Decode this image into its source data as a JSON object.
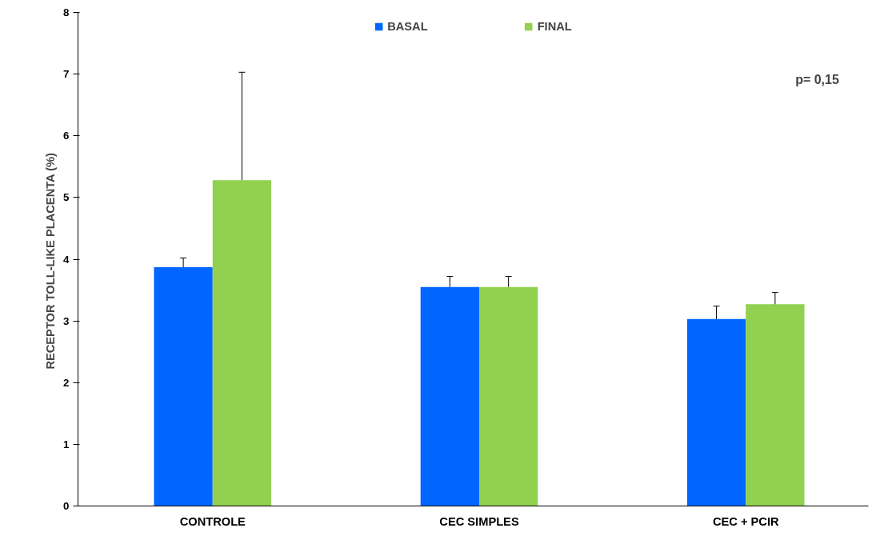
{
  "chart_data": {
    "type": "bar",
    "ylabel": "RECEPTOR TOLL-LIKE PLACENTA  (%)",
    "categories": [
      "CONTROLE",
      "CEC SIMPLES",
      "CEC + PCIR"
    ],
    "series": [
      {
        "name": "BASAL",
        "color": "#0066ff",
        "values": [
          3.87,
          3.55,
          3.03
        ],
        "errors": [
          [
            3.87,
            4.02
          ],
          [
            3.55,
            3.72
          ],
          [
            3.03,
            3.24
          ]
        ]
      },
      {
        "name": "FINAL",
        "color": "#92d050",
        "values": [
          5.28,
          3.55,
          3.27
        ],
        "errors": [
          [
            5.28,
            7.03
          ],
          [
            3.55,
            3.72
          ],
          [
            3.27,
            3.46
          ]
        ]
      }
    ],
    "ylim": [
      0,
      8
    ],
    "yticks": [
      0,
      1,
      2,
      3,
      4,
      5,
      6,
      7,
      8
    ],
    "annotations": [
      "p= 0,15"
    ],
    "legend": "top",
    "grid": false
  }
}
